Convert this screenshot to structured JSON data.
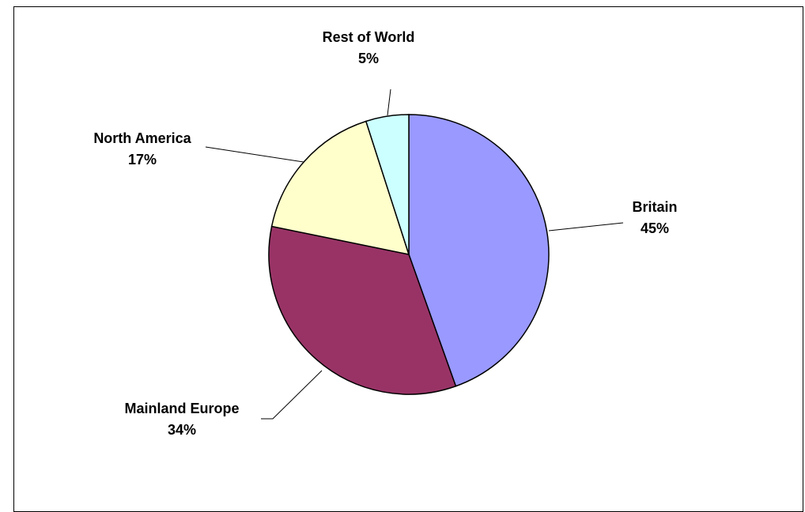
{
  "chart_data": {
    "type": "pie",
    "title": "",
    "slices": [
      {
        "label": "Britain",
        "value": 45,
        "value_label": "45%",
        "color": "#9999FF"
      },
      {
        "label": "Mainland Europe",
        "value": 34,
        "value_label": "34%",
        "color": "#993366"
      },
      {
        "label": "North America",
        "value": 17,
        "value_label": "17%",
        "color": "#FFFFCC"
      },
      {
        "label": "Rest of World",
        "value": 5,
        "value_label": "5%",
        "color": "#CCFFFF"
      }
    ],
    "start_angle_deg": 0,
    "direction": "clockwise",
    "legend": "none",
    "labels": "outside with leader lines"
  }
}
